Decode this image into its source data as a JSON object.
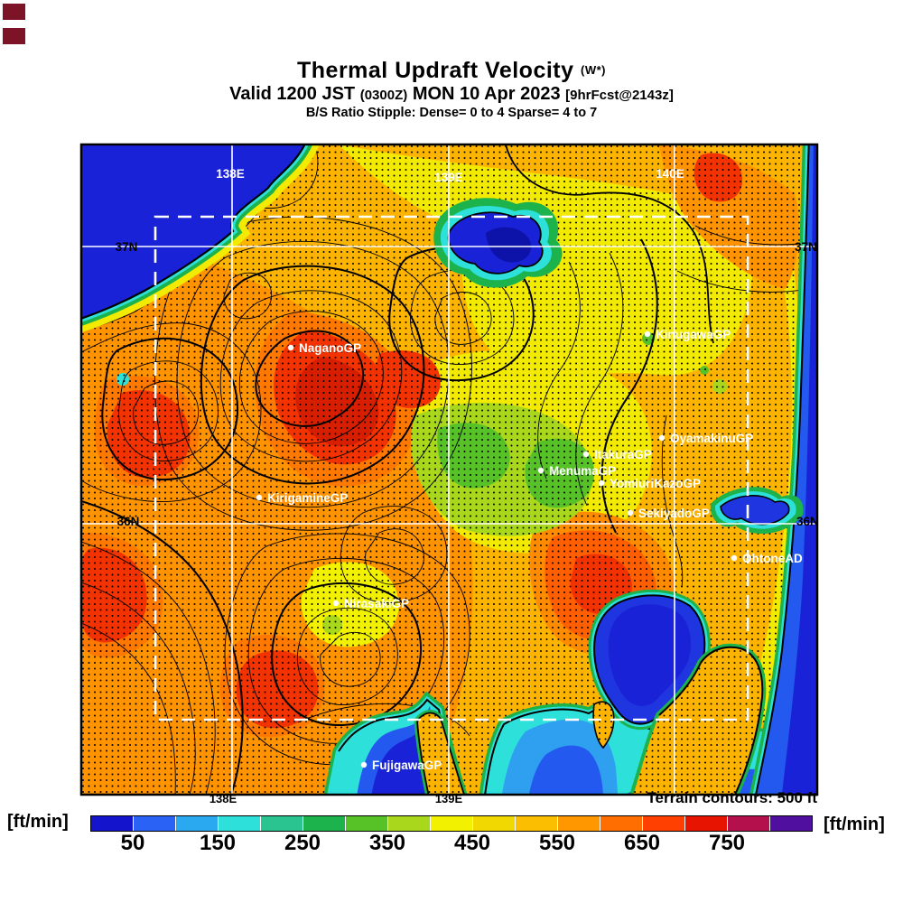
{
  "header": {
    "title": "Thermal Updraft Velocity",
    "title_unit": "(W*)",
    "valid_prefix": "Valid 1200 JST",
    "valid_zulu": "(0300Z)",
    "valid_date": "MON 10 Apr 2023",
    "valid_fcst": "[9hrFcst@2143z]",
    "stipple_line": "B/S Ratio Stipple:  Dense= 0 to 4  Sparse= 4 to 7"
  },
  "map": {
    "lon_top": [
      "138E",
      "139E",
      "140E"
    ],
    "lon_bottom": [
      "138E",
      "139E"
    ],
    "lat_left": [
      "37N",
      "36N"
    ],
    "lat_right": [
      "37N",
      "36N"
    ],
    "terrain_note": "Terrain contours: 500 ft",
    "sites": [
      {
        "name": "NaganoGP"
      },
      {
        "name": "KinugawaGP"
      },
      {
        "name": "OyamakinuGP"
      },
      {
        "name": "ItakuraGP"
      },
      {
        "name": "MenumaGP"
      },
      {
        "name": "YomiuriKazoGP"
      },
      {
        "name": "SekiyadoGP"
      },
      {
        "name": "OhtoneAD"
      },
      {
        "name": "KirigamineGP"
      },
      {
        "name": "NirasakiGP"
      },
      {
        "name": "FujigawaGP"
      }
    ]
  },
  "colorbar": {
    "unit_left": "[ft/min]",
    "unit_right": "[ft/min]",
    "ticks": [
      "50",
      "150",
      "250",
      "350",
      "450",
      "550",
      "650",
      "750"
    ],
    "segment_colors": [
      "#1414cd",
      "#2a62f5",
      "#2aa8f0",
      "#2ee0da",
      "#29c490",
      "#1cb24c",
      "#57c228",
      "#a8d71c",
      "#f2f200",
      "#f0d800",
      "#fcbe00",
      "#ff9800",
      "#ff6e00",
      "#ff4000",
      "#e61400",
      "#b4104b",
      "#500f9e"
    ],
    "scale_ft_min": {
      "min": 0,
      "max": 850,
      "step_per_segment": 50
    }
  },
  "palette": {
    "sea_deep": "#1a22d8",
    "sea_mid": "#2359ee",
    "shallow_cyan": "#2ee0da",
    "coast_green": "#1cb24c",
    "land_gold": "#fcb400",
    "land_orange": "#ff9300",
    "updraft_red": "#f23200",
    "plain_yellow": "#f2ea00"
  }
}
